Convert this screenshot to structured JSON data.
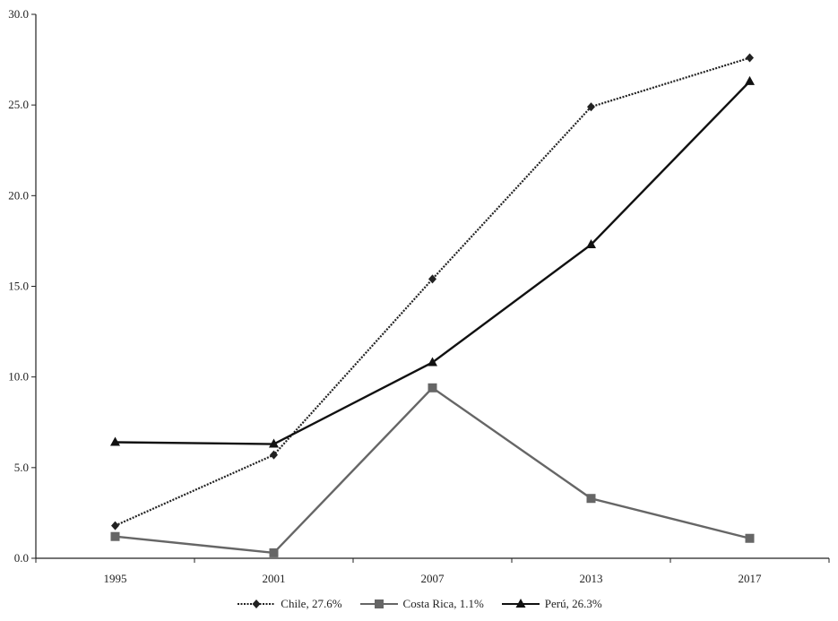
{
  "chart_data": {
    "type": "line",
    "categories": [
      "1995",
      "2001",
      "2007",
      "2013",
      "2017"
    ],
    "ylim": [
      0,
      30
    ],
    "yticks": [
      "0.0",
      "5.0",
      "10.0",
      "15.0",
      "20.0",
      "25.0",
      "30.0"
    ],
    "title": "",
    "xlabel": "",
    "ylabel": "",
    "grid": false,
    "legend_position": "bottom",
    "series": [
      {
        "name": "Chile, 27.6%",
        "values": [
          1.8,
          5.7,
          15.4,
          24.9,
          27.6
        ],
        "color": "#222222",
        "dash": "dotted",
        "marker": "diamond"
      },
      {
        "name": "Costa Rica, 1.1%",
        "values": [
          1.2,
          0.3,
          9.4,
          3.3,
          1.1
        ],
        "color": "#666666",
        "dash": "solid",
        "marker": "square"
      },
      {
        "name": "Perú, 26.3%",
        "values": [
          6.4,
          6.3,
          10.8,
          17.3,
          26.3
        ],
        "color": "#111111",
        "dash": "solid",
        "marker": "triangle"
      }
    ]
  }
}
